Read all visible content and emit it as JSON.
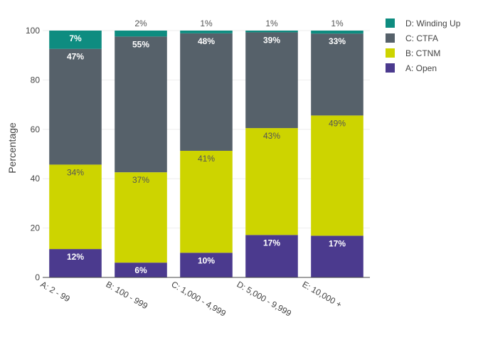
{
  "chart_data": {
    "type": "bar",
    "stacked": true,
    "title": "",
    "xlabel": "",
    "ylabel": "Percentage",
    "ylim": [
      0,
      100
    ],
    "yticks": [
      0,
      20,
      40,
      60,
      80,
      100
    ],
    "grid": true,
    "legend_position": "top-right",
    "categories": [
      "A: 2 - 99",
      "B: 100 - 999",
      "C: 1,000 - 4,999",
      "D: 5,000 - 9,999",
      "E: 10,000 +"
    ],
    "series": [
      {
        "name": "A: Open",
        "color": "#4b3a8e",
        "label_color": "#ffffff",
        "label_position": "inside",
        "values": [
          11.5,
          6,
          10,
          17.2,
          16.9
        ],
        "labels": [
          "12%",
          "6%",
          "10%",
          "17%",
          "17%"
        ]
      },
      {
        "name": "B: CTNM",
        "color": "#cdd400",
        "label_color": "#555555",
        "label_position": "inside",
        "values": [
          34.2,
          36.6,
          41.3,
          43.3,
          48.7
        ],
        "labels": [
          "34%",
          "37%",
          "41%",
          "43%",
          "49%"
        ]
      },
      {
        "name": "C: CTFA",
        "color": "#56616a",
        "label_color": "#ffffff",
        "label_position": "inside",
        "values": [
          46.9,
          55,
          47.6,
          38.8,
          33.2
        ],
        "labels": [
          "47%",
          "55%",
          "48%",
          "39%",
          "33%"
        ]
      },
      {
        "name": "D: Winding Up",
        "color": "#0e8c80",
        "label_color": "#ffffff",
        "label_position": "mixed",
        "values": [
          7.4,
          2.4,
          1.1,
          0.7,
          1.2
        ],
        "labels": [
          "7%",
          "2%",
          "1%",
          "1%",
          "1%"
        ]
      }
    ],
    "legend_order": [
      "D: Winding Up",
      "C: CTFA",
      "B: CTNM",
      "A: Open"
    ]
  }
}
